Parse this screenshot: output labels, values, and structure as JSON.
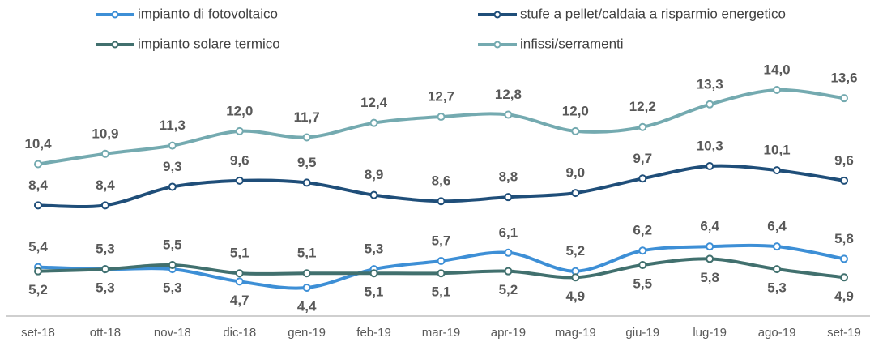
{
  "chart_data": {
    "type": "line",
    "categories": [
      "set-18",
      "ott-18",
      "nov-18",
      "dic-18",
      "gen-19",
      "feb-19",
      "mar-19",
      "apr-19",
      "mag-19",
      "giu-19",
      "lug-19",
      "ago-19",
      "set-19"
    ],
    "series": [
      {
        "name": "impianto di fotovoltaico",
        "color": "#3d8fd6",
        "values": [
          5.4,
          5.3,
          5.3,
          4.7,
          4.4,
          5.3,
          5.7,
          6.1,
          5.2,
          6.2,
          6.4,
          6.4,
          5.8
        ],
        "value_labels": [
          "5,4",
          "5,3",
          "5,3",
          "4,7",
          "4,4",
          "5,3",
          "5,7",
          "6,1",
          "5,2",
          "6,2",
          "6,4",
          "6,4",
          "5,8"
        ]
      },
      {
        "name": "stufe a pellet/caldaia a risparmio energetico",
        "color": "#1f4e79",
        "values": [
          8.4,
          8.4,
          9.3,
          9.6,
          9.5,
          8.9,
          8.6,
          8.8,
          9.0,
          9.7,
          10.3,
          10.1,
          9.6
        ],
        "value_labels": [
          "8,4",
          "8,4",
          "9,3",
          "9,6",
          "9,5",
          "8,9",
          "8,6",
          "8,8",
          "9,0",
          "9,7",
          "10,3",
          "10,1",
          "9,6"
        ]
      },
      {
        "name": "impianto solare termico",
        "color": "#41706e",
        "values": [
          5.2,
          5.3,
          5.5,
          5.1,
          5.1,
          5.1,
          5.1,
          5.2,
          4.9,
          5.5,
          5.8,
          5.3,
          4.9
        ],
        "value_labels": [
          "5,2",
          "5,3",
          "5,5",
          "5,1",
          "5,1",
          "5,1",
          "5,1",
          "5,2",
          "4,9",
          "5,5",
          "5,8",
          "5,3",
          "4,9"
        ]
      },
      {
        "name": "infissi/serramenti",
        "color": "#74aab0",
        "values": [
          10.4,
          10.9,
          11.3,
          12.0,
          11.7,
          12.4,
          12.7,
          12.8,
          12.0,
          12.2,
          13.3,
          14.0,
          13.6
        ],
        "value_labels": [
          "10,4",
          "10,9",
          "11,3",
          "12,0",
          "11,7",
          "12,4",
          "12,7",
          "12,8",
          "12,0",
          "12,2",
          "13,3",
          "14,0",
          "13,6"
        ]
      }
    ]
  }
}
